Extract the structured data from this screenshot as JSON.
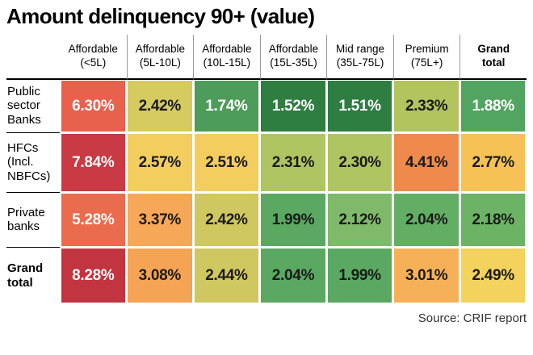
{
  "title": "Amount delinquency 90+ (value)",
  "source_label": "Source: CRIF report",
  "chart_data": {
    "type": "heatmap",
    "title": "Amount delinquency 90+ (value)",
    "columns": [
      "Affordable (<5L)",
      "Affordable (5L-10L)",
      "Affordable (10L-15L)",
      "Affordable (15L-35L)",
      "Mid range (35L-75L)",
      "Premium (75L+)",
      "Grand total"
    ],
    "rows": [
      "Public sector Banks",
      "HFCs (Incl. NBFCs)",
      "Private banks",
      "Grand total"
    ],
    "values": [
      [
        6.3,
        2.42,
        1.74,
        1.52,
        1.51,
        2.33,
        1.88
      ],
      [
        7.84,
        2.57,
        2.51,
        2.31,
        2.3,
        4.41,
        2.77
      ],
      [
        5.28,
        3.37,
        2.42,
        1.99,
        2.12,
        2.04,
        2.18
      ],
      [
        8.28,
        3.08,
        2.44,
        2.04,
        1.99,
        3.01,
        2.49
      ]
    ],
    "value_format": "percent",
    "legend": "none",
    "source": "CRIF report",
    "color_scale": {
      "low_good": "#2e7d41",
      "mid": "#f3cd5e",
      "high_bad": "#c2343f"
    }
  },
  "table": {
    "col_headers": [
      {
        "lines": "Affordable\n(<5L)",
        "bold": false
      },
      {
        "lines": "Affordable\n(5L-10L)",
        "bold": false
      },
      {
        "lines": "Affordable\n(10L-15L)",
        "bold": false
      },
      {
        "lines": "Affordable\n(15L-35L)",
        "bold": false
      },
      {
        "lines": "Mid range\n(35L-75L)",
        "bold": false
      },
      {
        "lines": "Premium\n(75L+)",
        "bold": false
      },
      {
        "lines": "Grand\ntotal",
        "bold": true
      }
    ],
    "rows": [
      {
        "label": "Public sector Banks",
        "bold": false,
        "cells": [
          {
            "text": "6.30%",
            "bg": "#e8614d",
            "fg": "#ffffff"
          },
          {
            "text": "2.42%",
            "bg": "#d5cb61",
            "fg": "#1a1a1a"
          },
          {
            "text": "1.74%",
            "bg": "#4d9c59",
            "fg": "#ffffff"
          },
          {
            "text": "1.52%",
            "bg": "#2e7d41",
            "fg": "#ffffff"
          },
          {
            "text": "1.51%",
            "bg": "#2e7d41",
            "fg": "#ffffff"
          },
          {
            "text": "2.33%",
            "bg": "#b2c45e",
            "fg": "#1a1a1a"
          },
          {
            "text": "1.88%",
            "bg": "#52a561",
            "fg": "#ffffff"
          }
        ]
      },
      {
        "label": "HFCs (Incl. NBFCs)",
        "bold": false,
        "cells": [
          {
            "text": "7.84%",
            "bg": "#c93a44",
            "fg": "#ffffff"
          },
          {
            "text": "2.57%",
            "bg": "#f3cd5e",
            "fg": "#1a1a1a"
          },
          {
            "text": "2.51%",
            "bg": "#f3cd5e",
            "fg": "#1a1a1a"
          },
          {
            "text": "2.31%",
            "bg": "#aec561",
            "fg": "#1a1a1a"
          },
          {
            "text": "2.30%",
            "bg": "#aec561",
            "fg": "#1a1a1a"
          },
          {
            "text": "4.41%",
            "bg": "#f08a4c",
            "fg": "#1a1a1a"
          },
          {
            "text": "2.77%",
            "bg": "#f6c255",
            "fg": "#1a1a1a"
          }
        ]
      },
      {
        "label": "Private banks",
        "bold": false,
        "cells": [
          {
            "text": "5.28%",
            "bg": "#ea6b4e",
            "fg": "#ffffff"
          },
          {
            "text": "3.37%",
            "bg": "#f6a758",
            "fg": "#1a1a1a"
          },
          {
            "text": "2.42%",
            "bg": "#cfc75f",
            "fg": "#1a1a1a"
          },
          {
            "text": "1.99%",
            "bg": "#5aa862",
            "fg": "#1a1a1a"
          },
          {
            "text": "2.12%",
            "bg": "#7eba6a",
            "fg": "#1a1a1a"
          },
          {
            "text": "2.04%",
            "bg": "#62ae64",
            "fg": "#1a1a1a"
          },
          {
            "text": "2.18%",
            "bg": "#6cb365",
            "fg": "#1a1a1a"
          }
        ]
      },
      {
        "label": "Grand total",
        "bold": true,
        "cells": [
          {
            "text": "8.28%",
            "bg": "#c2343f",
            "fg": "#ffffff"
          },
          {
            "text": "3.08%",
            "bg": "#f5a355",
            "fg": "#1a1a1a"
          },
          {
            "text": "2.44%",
            "bg": "#cfc75f",
            "fg": "#1a1a1a"
          },
          {
            "text": "2.04%",
            "bg": "#5aa862",
            "fg": "#1a1a1a"
          },
          {
            "text": "1.99%",
            "bg": "#5aa862",
            "fg": "#1a1a1a"
          },
          {
            "text": "3.01%",
            "bg": "#f6b158",
            "fg": "#1a1a1a"
          },
          {
            "text": "2.49%",
            "bg": "#f3d25e",
            "fg": "#1a1a1a"
          }
        ]
      }
    ]
  }
}
